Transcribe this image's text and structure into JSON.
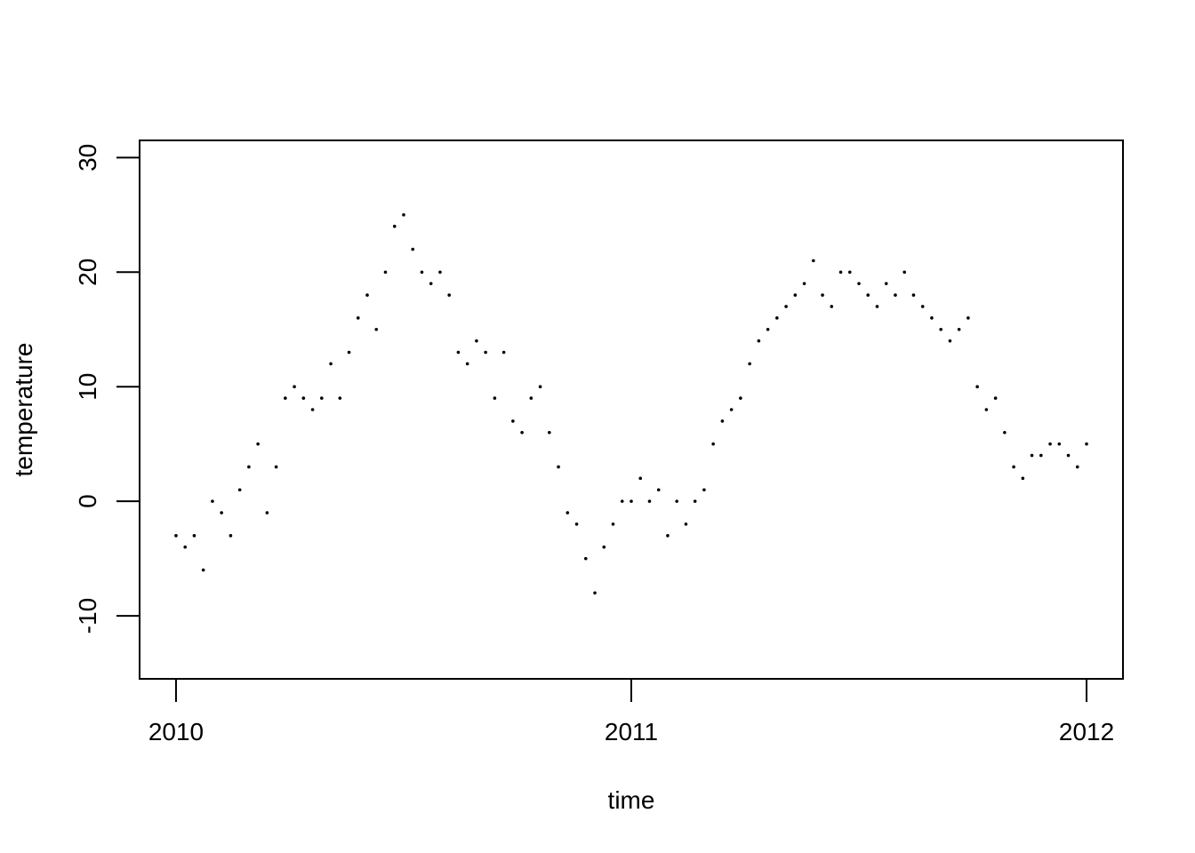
{
  "chart_data": {
    "type": "scatter",
    "title": "",
    "xlabel": "time",
    "ylabel": "temperature",
    "xlim": [
      2009.92,
      2012.08
    ],
    "ylim": [
      -15.5,
      31.5
    ],
    "x_ticks": [
      2010,
      2011,
      2012
    ],
    "x_tick_labels": [
      "2010",
      "2011",
      "2012"
    ],
    "y_ticks": [
      -10,
      0,
      10,
      20,
      30
    ],
    "y_tick_labels": [
      "-10",
      "0",
      "10",
      "20",
      "30"
    ],
    "grid": false,
    "legend": "none",
    "marker_color": "#000000",
    "series": [
      {
        "x": [
          2010.0,
          2010.02,
          2010.04,
          2010.06,
          2010.08,
          2010.1,
          2010.12,
          2010.14,
          2010.16,
          2010.18,
          2010.2,
          2010.22,
          2010.24,
          2010.26,
          2010.28,
          2010.3,
          2010.32,
          2010.34,
          2010.36,
          2010.38,
          2010.4,
          2010.42,
          2010.44,
          2010.46,
          2010.48,
          2010.5,
          2010.52,
          2010.54,
          2010.56,
          2010.58,
          2010.6,
          2010.62,
          2010.64,
          2010.66,
          2010.68,
          2010.7,
          2010.72,
          2010.74,
          2010.76,
          2010.78,
          2010.8,
          2010.82,
          2010.84,
          2010.86,
          2010.88,
          2010.9,
          2010.92,
          2010.94,
          2010.96,
          2010.98,
          2011.0,
          2011.02,
          2011.04,
          2011.06,
          2011.08,
          2011.1,
          2011.12,
          2011.14,
          2011.16,
          2011.18,
          2011.2,
          2011.22,
          2011.24,
          2011.26,
          2011.28,
          2011.3,
          2011.32,
          2011.34,
          2011.36,
          2011.38,
          2011.4,
          2011.42,
          2011.44,
          2011.46,
          2011.48,
          2011.5,
          2011.52,
          2011.54,
          2011.56,
          2011.58,
          2011.6,
          2011.62,
          2011.64,
          2011.66,
          2011.68,
          2011.7,
          2011.72,
          2011.74,
          2011.76,
          2011.78,
          2011.8,
          2011.82,
          2011.84,
          2011.86,
          2011.88,
          2011.9,
          2011.92,
          2011.94,
          2011.96,
          2011.98,
          2012.0
        ],
        "y": [
          -3,
          -4,
          -3,
          -6,
          0,
          -1,
          -3,
          1,
          3,
          5,
          -1,
          3,
          9,
          10,
          9,
          8,
          9,
          12,
          9,
          13,
          16,
          18,
          15,
          20,
          24,
          25,
          22,
          20,
          19,
          20,
          18,
          13,
          12,
          14,
          13,
          9,
          13,
          7,
          6,
          9,
          10,
          6,
          3,
          -1,
          -2,
          -5,
          -8,
          -4,
          -2,
          0,
          0,
          2,
          0,
          1,
          -3,
          0,
          -2,
          0,
          1,
          5,
          7,
          8,
          9,
          12,
          14,
          15,
          16,
          17,
          18,
          19,
          21,
          18,
          17,
          20,
          20,
          19,
          18,
          17,
          19,
          18,
          20,
          18,
          17,
          16,
          15,
          14,
          15,
          16,
          10,
          8,
          9,
          6,
          3,
          2,
          4,
          4,
          5,
          5,
          4,
          3,
          5
        ]
      }
    ]
  }
}
